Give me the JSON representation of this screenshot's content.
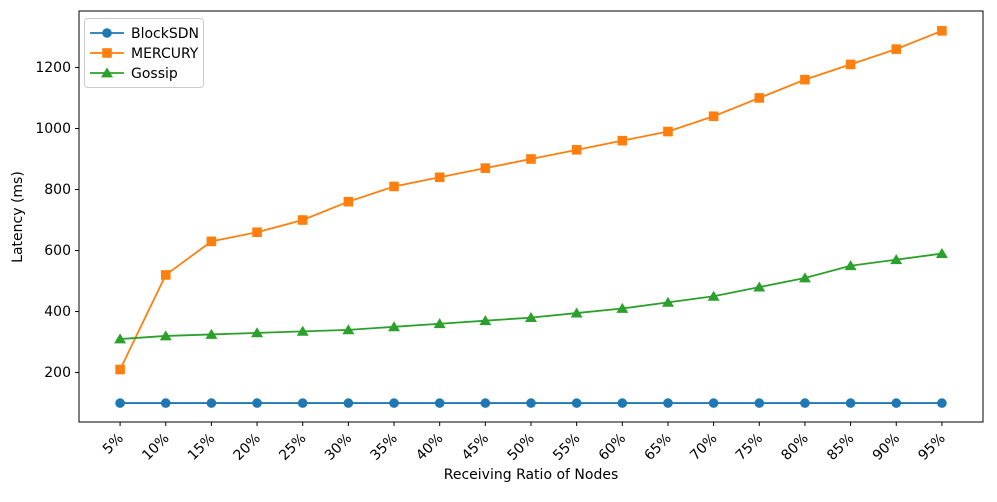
{
  "chart_data": {
    "type": "line",
    "title": "",
    "xlabel": "Receiving Ratio of Nodes",
    "ylabel": "Latency (ms)",
    "categories": [
      "5%",
      "10%",
      "15%",
      "20%",
      "25%",
      "30%",
      "35%",
      "40%",
      "45%",
      "50%",
      "55%",
      "60%",
      "65%",
      "70%",
      "75%",
      "80%",
      "85%",
      "90%",
      "95%"
    ],
    "series": [
      {
        "name": "BlockSDN",
        "color": "#1f77b4",
        "marker": "circle",
        "values": [
          100,
          100,
          100,
          100,
          100,
          100,
          100,
          100,
          100,
          100,
          100,
          100,
          100,
          100,
          100,
          100,
          100,
          100,
          100
        ]
      },
      {
        "name": "MERCURY",
        "color": "#ff7f0e",
        "marker": "square",
        "values": [
          210,
          520,
          630,
          660,
          700,
          760,
          810,
          840,
          870,
          900,
          930,
          960,
          990,
          1040,
          1100,
          1160,
          1210,
          1260,
          1320
        ]
      },
      {
        "name": "Gossip",
        "color": "#2ca02c",
        "marker": "triangle",
        "values": [
          310,
          320,
          325,
          330,
          335,
          340,
          350,
          360,
          370,
          380,
          395,
          410,
          430,
          450,
          480,
          510,
          550,
          570,
          590
        ]
      }
    ],
    "yticks": [
      200,
      400,
      600,
      800,
      1000,
      1200
    ],
    "ylim": [
      38,
      1385
    ],
    "xlim": [
      -0.9,
      18.9
    ],
    "grid": false,
    "legend_position": "upper-left",
    "axis_color": "#000000",
    "legend_border_color": "#cccccc"
  }
}
